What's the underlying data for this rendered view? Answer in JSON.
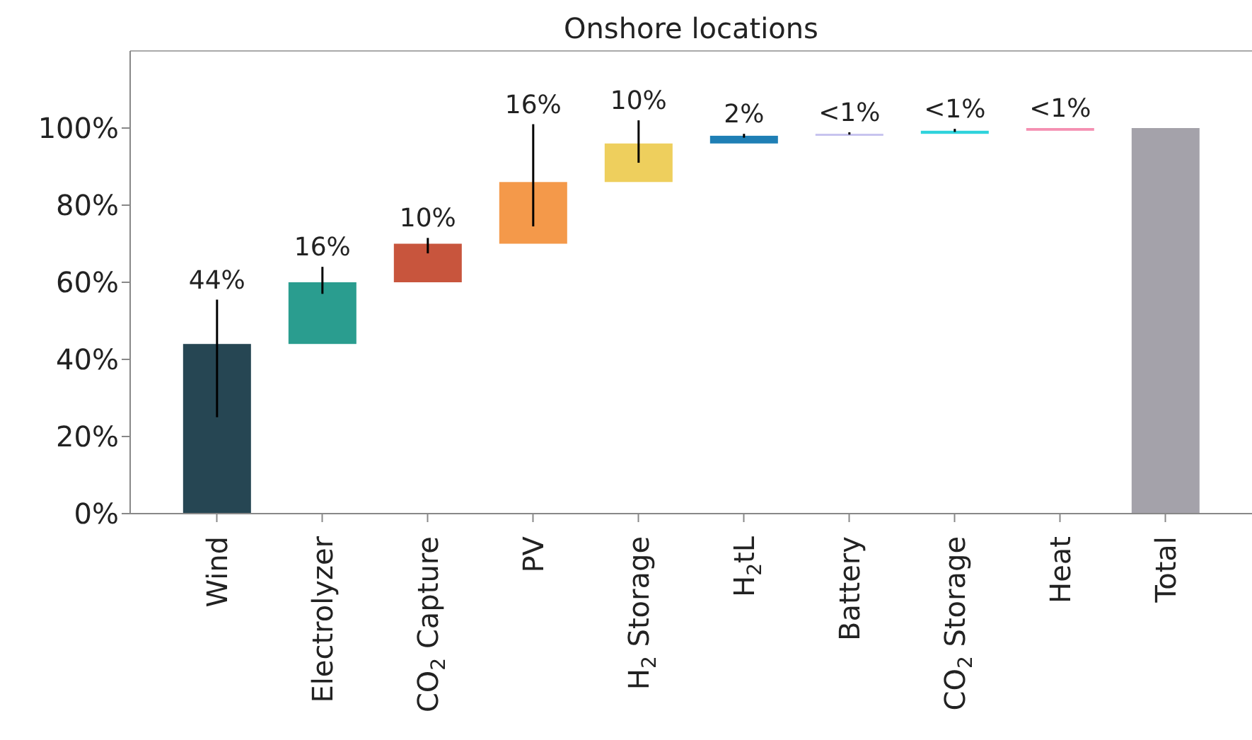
{
  "chart_data": {
    "type": "bar",
    "title": "Onshore locations",
    "categories": [
      "Wind",
      "Electrolyzer",
      "CO$_{2}$ Capture",
      "PV",
      "H$_{2}$ Storage",
      "H$_{2}$tL",
      "Battery",
      "CO$_{2}$ Storage",
      "Heat",
      "Total"
    ],
    "values": [
      44,
      16,
      10,
      16,
      10,
      2,
      0.5,
      0.8,
      0.7,
      100
    ],
    "base": [
      0,
      44,
      60,
      70,
      86,
      96,
      98,
      98.5,
      99.3,
      0
    ],
    "colors": [
      "#264653",
      "#2a9d8f",
      "#c8553d",
      "#f4994a",
      "#eecf5d",
      "#1f7fb5",
      "#c3bfee",
      "#2fd3dc",
      "#f48fb1",
      "#a4a2aa"
    ],
    "errors": [
      [
        25,
        55.5
      ],
      [
        57,
        64
      ],
      [
        67.5,
        71.5
      ],
      [
        74.5,
        101
      ],
      [
        91,
        102
      ],
      [
        97.5,
        98.5
      ],
      [
        98.3,
        98.9
      ],
      [
        99,
        99.8
      ],
      null,
      null
    ],
    "value_labels": [
      "44%",
      "16%",
      "10%",
      "16%",
      "10%",
      "2%",
      "<1%",
      "<1%",
      "<1%",
      null
    ],
    "ylim": [
      0,
      120
    ],
    "yticks": [
      {
        "value": 0,
        "label": "0%"
      },
      {
        "value": 20,
        "label": "20%"
      },
      {
        "value": 40,
        "label": "40%"
      },
      {
        "value": 60,
        "label": "60%"
      },
      {
        "value": 80,
        "label": "80%"
      },
      {
        "value": 100,
        "label": "100%"
      }
    ],
    "grid": false,
    "legend": false
  }
}
